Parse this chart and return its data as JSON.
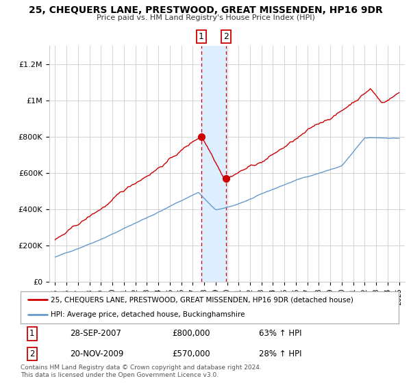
{
  "title": "25, CHEQUERS LANE, PRESTWOOD, GREAT MISSENDEN, HP16 9DR",
  "subtitle": "Price paid vs. HM Land Registry's House Price Index (HPI)",
  "legend_line1": "25, CHEQUERS LANE, PRESTWOOD, GREAT MISSENDEN, HP16 9DR (detached house)",
  "legend_line2": "HPI: Average price, detached house, Buckinghamshire",
  "footer": "Contains HM Land Registry data © Crown copyright and database right 2024.\nThis data is licensed under the Open Government Licence v3.0.",
  "transaction1_date": "28-SEP-2007",
  "transaction1_price": "£800,000",
  "transaction1_hpi": "63% ↑ HPI",
  "transaction2_date": "20-NOV-2009",
  "transaction2_price": "£570,000",
  "transaction2_hpi": "28% ↑ HPI",
  "red_color": "#cc0000",
  "blue_color": "#6699cc",
  "shaded_color": "#ddeeff",
  "ylim": [
    0,
    1300000
  ],
  "yticks": [
    0,
    200000,
    400000,
    600000,
    800000,
    1000000,
    1200000
  ],
  "ytick_labels": [
    "£0",
    "£200K",
    "£400K",
    "£600K",
    "£800K",
    "£1M",
    "£1.2M"
  ],
  "transaction1_x": 2007.75,
  "transaction1_y": 800000,
  "transaction2_x": 2009.9,
  "transaction2_y": 570000,
  "shade_x1": 2007.75,
  "shade_x2": 2009.9,
  "xlim_left": 1994.5,
  "xlim_right": 2025.5
}
